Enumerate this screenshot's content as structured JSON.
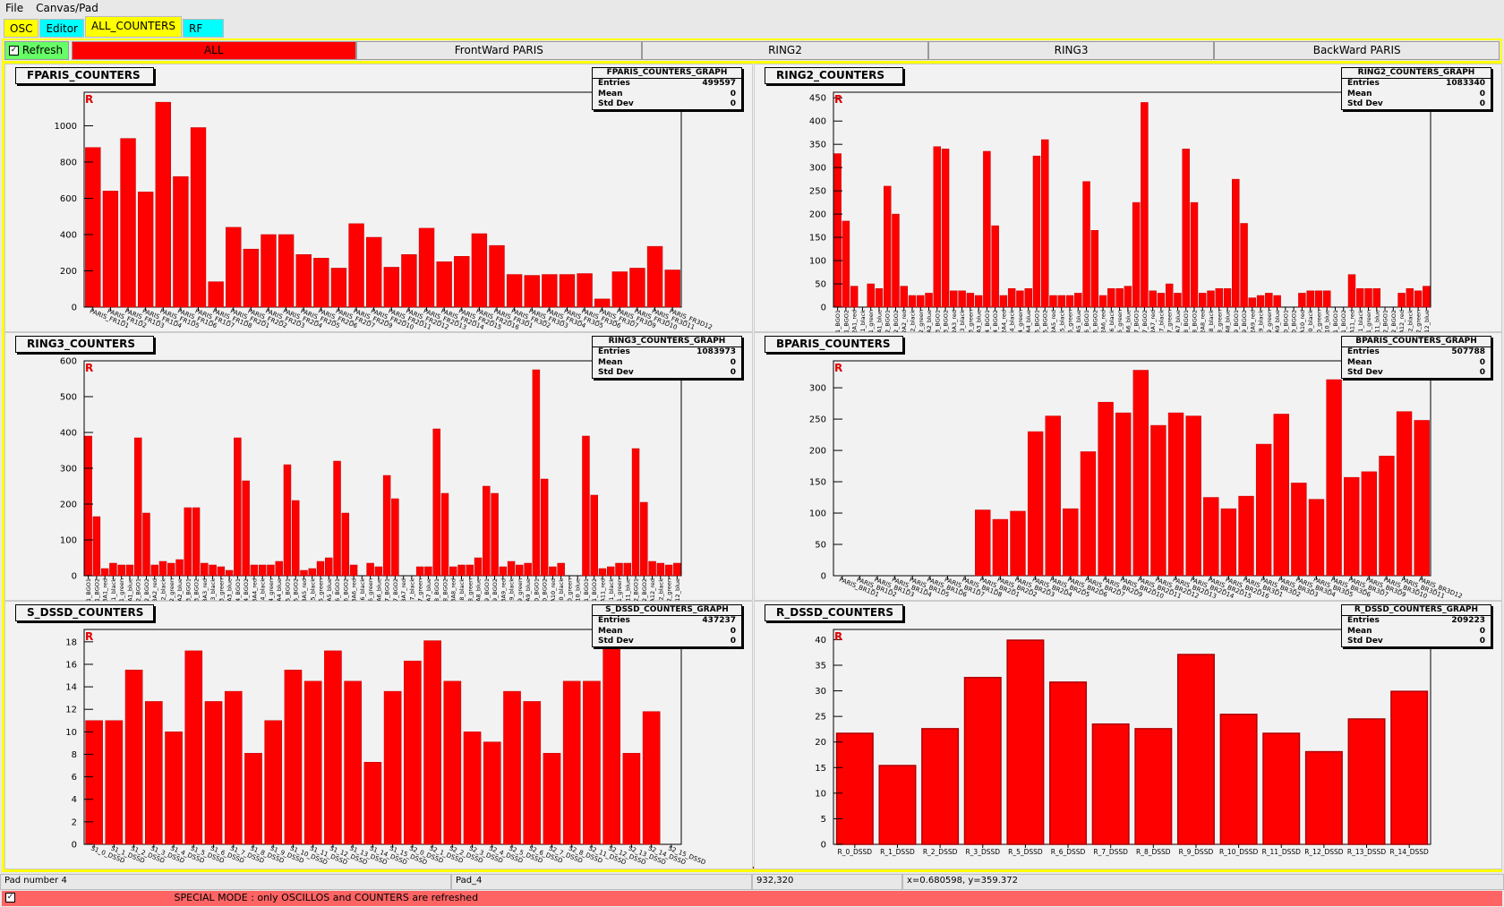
{
  "menu": [
    "File",
    "Canvas/Pad"
  ],
  "tabs": [
    {
      "label": "OSC",
      "color": "#ffff00"
    },
    {
      "label": "Editor",
      "color": "#00ffff"
    },
    {
      "label": "ALL_COUNTERS",
      "color": "#ffff00"
    },
    {
      "label": "RF",
      "color": "#00ffff"
    }
  ],
  "toolbar": {
    "refresh_label": "Refresh",
    "refresh_checked": true,
    "buttons": [
      "ALL",
      "FrontWard PARIS",
      "RING2",
      "RING3",
      "BackWard PARIS"
    ],
    "active_color": "#ff0000",
    "refresh_color": "#66ff66"
  },
  "status": {
    "pad": "Pad number 4",
    "name": "Pad_4",
    "pixel": "932,320",
    "coords": "x=0.680598, y=359.372"
  },
  "special": {
    "checked": true,
    "text": "SPECIAL MODE : only OSCILLOS and COUNTERS are refreshed",
    "color": "#ff6464"
  },
  "stat_labels": [
    "Entries",
    "Mean",
    "Std Dev"
  ],
  "marker": "R",
  "bar_color": "#ff0000",
  "chart_data": [
    {
      "type": "bar",
      "title": "FPARIS_COUNTERS",
      "stats_title": "FPARIS_COUNTERS_GRAPH",
      "entries": "499597",
      "mean": "0",
      "std": "0",
      "ylim": [
        0,
        1185
      ],
      "yticks": [
        0,
        200,
        400,
        600,
        800,
        1000
      ],
      "categories": [
        "PARIS_FR1D1",
        "PARIS_FR1D2",
        "PARIS_FR1D3",
        "PARIS_FR1D4",
        "PARIS_FR1D5",
        "PARIS_FR1D6",
        "PARIS_FR1D7",
        "PARIS_FR1D8",
        "PARIS_FR2D1",
        "PARIS_FR2D2",
        "PARIS_FR2D3",
        "PARIS_FR2D4",
        "PARIS_FR2D5",
        "PARIS_FR2D6",
        "PARIS_FR2D7",
        "PARIS_FR2D9",
        "PARIS_FR2D10",
        "PARIS_FR2D11",
        "PARIS_FR2D12",
        "PARIS_FR2D13",
        "PARIS_FR2D14",
        "PARIS_FR2D15",
        "PARIS_FR2D16",
        "PARIS_FR3D1",
        "PARIS_FR3D2",
        "PARIS_FR3D3",
        "PARIS_FR3D4",
        "PARIS_FR3D5",
        "PARIS_FR3D6",
        "PARIS_FR3D7",
        "PARIS_FR3D9",
        "PARIS_FR3D10",
        "PARIS_FR3D11",
        "PARIS_FR3D12"
      ],
      "values": [
        880,
        640,
        930,
        635,
        1130,
        720,
        990,
        140,
        440,
        320,
        400,
        400,
        290,
        270,
        215,
        460,
        385,
        220,
        290,
        435,
        250,
        280,
        405,
        340,
        180,
        175,
        180,
        180,
        185,
        45,
        195,
        215,
        335,
        205
      ]
    },
    {
      "type": "bar",
      "title": "RING2_COUNTERS",
      "stats_title": "RING2_COUNTERS_GRAPH",
      "entries": "1083340",
      "mean": "0",
      "std": "0",
      "ylim": [
        0,
        462
      ],
      "yticks": [
        0,
        50,
        100,
        150,
        200,
        250,
        300,
        350,
        400,
        450
      ],
      "categories": [
        "A1_BGO1",
        "A1_BGO2",
        "2A1_red",
        "A1_black",
        "A1_green",
        "2A1_blue",
        "A2_BGO1",
        "A2_BGO2",
        "2A2_red",
        "A2_black",
        "A2_green",
        "2A2_blue",
        "A3_BGO1",
        "A3_BGO2",
        "2A3_red",
        "A3_black",
        "A3_green",
        "2A3_blue",
        "A4_BGO1",
        "A4_BGO2",
        "2A4_red",
        "A4_black",
        "A4_green",
        "2A4_blue",
        "A5_BGO1",
        "A5_BGO2",
        "2A5_red",
        "A5_black",
        "A5_green",
        "2A5_blue",
        "A6_BGO1",
        "A6_BGO2",
        "2A6_red",
        "A6_black",
        "A6_green",
        "2A6_blue",
        "A7_BGO1",
        "A7_BGO2",
        "2A7_red",
        "A7_black",
        "A7_green",
        "2A7_blue",
        "A8_BGO1",
        "A8_BGO2",
        "2A8_red",
        "A8_black",
        "A8_green",
        "2A8_blue",
        "A9_BGO1",
        "A9_BGO2",
        "2A9_red",
        "A9_black",
        "A9_green",
        "2A9_blue",
        "A10_BGO1",
        "A10_BGO2",
        "2A10_red",
        "A10_black",
        "A10_green",
        "2A10_blue",
        "A11_BGO1",
        "A11_BGO2",
        "2A11_red",
        "A11_black",
        "A11_green",
        "2A11_blue",
        "A12_BGO1",
        "A12_BGO2",
        "2A12_red",
        "A12_black",
        "A12_green",
        "2A12_blue"
      ],
      "values": [
        330,
        185,
        45,
        0,
        50,
        40,
        260,
        200,
        45,
        25,
        25,
        30,
        345,
        340,
        35,
        35,
        30,
        25,
        335,
        175,
        25,
        40,
        35,
        40,
        325,
        360,
        25,
        25,
        25,
        30,
        270,
        165,
        25,
        40,
        40,
        45,
        225,
        440,
        35,
        30,
        50,
        30,
        340,
        225,
        30,
        35,
        40,
        40,
        275,
        180,
        20,
        25,
        30,
        25,
        0,
        0,
        30,
        35,
        35,
        35,
        0,
        0,
        70,
        40,
        40,
        40,
        0,
        0,
        30,
        40,
        35,
        45
      ]
    },
    {
      "type": "bar",
      "title": "RING3_COUNTERS",
      "stats_title": "RING3_COUNTERS_GRAPH",
      "entries": "1083973",
      "mean": "0",
      "std": "0",
      "ylim": [
        0,
        600
      ],
      "yticks": [
        0,
        100,
        200,
        300,
        400,
        500,
        600
      ],
      "categories": [
        "A1_BGO1",
        "A1_BGO2",
        "3A1_red",
        "A1_black",
        "A1_green",
        "3A1_blue",
        "A2_BGO1",
        "A2_BGO2",
        "3A2_red",
        "A2_black",
        "A2_green",
        "3A2_blue",
        "A3_BGO1",
        "A3_BGO2",
        "3A3_red",
        "A3_black",
        "A3_green",
        "3A3_blue",
        "A4_BGO1",
        "A4_BGO2",
        "3A4_red",
        "A4_black",
        "A4_green",
        "3A4_blue",
        "A5_BGO1",
        "A5_BGO2",
        "3A5_red",
        "A5_black",
        "A5_green",
        "3A5_blue",
        "A6_BGO1",
        "A6_BGO2",
        "3A6_red",
        "A6_black",
        "A6_green",
        "3A6_blue",
        "A7_BGO1",
        "A7_BGO2",
        "3A7_red",
        "A7_black",
        "A7_green",
        "3A7_blue",
        "A8_BGO1",
        "A8_BGO2",
        "3A8_red",
        "A8_black",
        "A8_green",
        "3A8_blue",
        "A9_BGO1",
        "A9_BGO2",
        "3A9_red",
        "A9_black",
        "A9_green",
        "3A9_blue",
        "A10_BGO1",
        "A10_BGO2",
        "3A10_red",
        "A10_black",
        "A10_green",
        "3A10_blue",
        "A11_BGO1",
        "A11_BGO2",
        "3A11_red",
        "A11_black",
        "A11_green",
        "3A11_blue",
        "A12_BGO1",
        "A12_BGO2",
        "3A12_red",
        "A12_black",
        "A12_green",
        "3A12_blue"
      ],
      "values": [
        390,
        165,
        20,
        35,
        30,
        30,
        385,
        175,
        30,
        40,
        35,
        45,
        190,
        190,
        35,
        30,
        25,
        15,
        385,
        265,
        30,
        30,
        30,
        40,
        310,
        210,
        15,
        20,
        40,
        50,
        320,
        175,
        30,
        0,
        35,
        25,
        280,
        215,
        0,
        0,
        25,
        25,
        410,
        230,
        25,
        30,
        30,
        50,
        250,
        230,
        25,
        40,
        30,
        35,
        575,
        270,
        25,
        35,
        0,
        0,
        390,
        225,
        20,
        25,
        35,
        35,
        355,
        205,
        40,
        35,
        30,
        35
      ]
    },
    {
      "type": "bar",
      "title": "BPARIS_COUNTERS",
      "stats_title": "BPARIS_COUNTERS_GRAPH",
      "entries": "507788",
      "mean": "0",
      "std": "0",
      "ylim": [
        0,
        343
      ],
      "yticks": [
        0,
        50,
        100,
        150,
        200,
        250,
        300
      ],
      "categories": [
        "PARIS_BR1D1",
        "PARIS_BR1D2",
        "PARIS_BR1D3",
        "PARIS_BR1D4",
        "PARIS_BR1D5",
        "PARIS_BR1D6",
        "PARIS_BR1D7",
        "PARIS_BR1D8",
        "PARIS_BR2D1",
        "PARIS_BR2D2",
        "PARIS_BR2D3",
        "PARIS_BR2D4",
        "PARIS_BR2D5",
        "PARIS_BR2D6",
        "PARIS_BR2D7",
        "PARIS_BR2D9",
        "PARIS_BR2D10",
        "PARIS_BR2D11",
        "PARIS_BR2D12",
        "PARIS_BR2D13",
        "PARIS_BR2D14",
        "PARIS_BR2D15",
        "PARIS_BR2D16",
        "PARIS_BR3D1",
        "PARIS_BR3D2",
        "PARIS_BR3D3",
        "PARIS_BR3D4",
        "PARIS_BR3D5",
        "PARIS_BR3D6",
        "PARIS_BR3D7",
        "PARIS_BR3D9",
        "PARIS_BR3D10",
        "PARIS_BR3D11",
        "PARIS_BR3D12"
      ],
      "values": [
        0,
        0,
        0,
        0,
        0,
        0,
        0,
        0,
        105,
        90,
        103,
        230,
        255,
        107,
        198,
        277,
        260,
        328,
        240,
        260,
        255,
        125,
        107,
        127,
        210,
        258,
        148,
        122,
        313,
        157,
        166,
        191,
        262,
        248
      ]
    },
    {
      "type": "bar",
      "title": "S_DSSD_COUNTERS",
      "stats_title": "S_DSSD_COUNTERS_GRAPH",
      "entries": "437237",
      "mean": "0",
      "std": "0",
      "ylim": [
        0,
        19.1
      ],
      "yticks": [
        0,
        2,
        4,
        6,
        8,
        10,
        12,
        14,
        16,
        18
      ],
      "categories": [
        "S1_0_DSSD",
        "S1_1_DSSD",
        "S1_2_DSSD",
        "S1_3_DSSD",
        "S1_4_DSSD",
        "S1_5_DSSD",
        "S1_6_DSSD",
        "S1_7_DSSD",
        "S1_8_DSSD",
        "S1_9_DSSD",
        "S1_10_DSSD",
        "S1_11_DSSD",
        "S1_12_DSSD",
        "S1_13_DSSD",
        "S1_14_DSSD",
        "S1_15_DSSD",
        "S2_0_DSSD",
        "S2_1_DSSD",
        "S2_2_DSSD",
        "S2_3_DSSD",
        "S2_4_DSSD",
        "S2_5_DSSD",
        "S2_6_DSSD",
        "S2_7_DSSD",
        "S2_8_DSSD",
        "S2_11_DSSD",
        "S2_12_DSSD",
        "S2_13_DSSD",
        "S2_14_DSSD",
        "S2_15_DSSD"
      ],
      "values": [
        11,
        11,
        15.5,
        12.7,
        10,
        17.2,
        12.7,
        13.6,
        8.1,
        11,
        15.5,
        14.5,
        17.2,
        14.5,
        7.3,
        13.6,
        16.3,
        18.1,
        14.5,
        10,
        9.1,
        13.6,
        12.7,
        8.1,
        14.5,
        14.5,
        17.5,
        8.1,
        11.8,
        0
      ]
    },
    {
      "type": "bar",
      "title": "R_DSSD_COUNTERS",
      "stats_title": "R_DSSD_COUNTERS_GRAPH",
      "entries": "209223",
      "mean": "0",
      "std": "0",
      "ylim": [
        0,
        42
      ],
      "yticks": [
        0,
        5,
        10,
        15,
        20,
        25,
        30,
        35,
        40
      ],
      "categories": [
        "R_0_DSSD",
        "R_1_DSSD",
        "R_2_DSSD",
        "R_3_DSSD",
        "R_5_DSSD",
        "R_6_DSSD",
        "R_7_DSSD",
        "R_8_DSSD",
        "R_9_DSSD",
        "R_10_DSSD",
        "R_11_DSSD",
        "R_12_DSSD",
        "R_13_DSSD",
        "R_14_DSSD"
      ],
      "values": [
        21.7,
        15.4,
        22.6,
        32.6,
        39.9,
        31.7,
        23.5,
        22.6,
        37.1,
        25.4,
        21.7,
        18.1,
        24.5,
        29.9
      ]
    }
  ]
}
